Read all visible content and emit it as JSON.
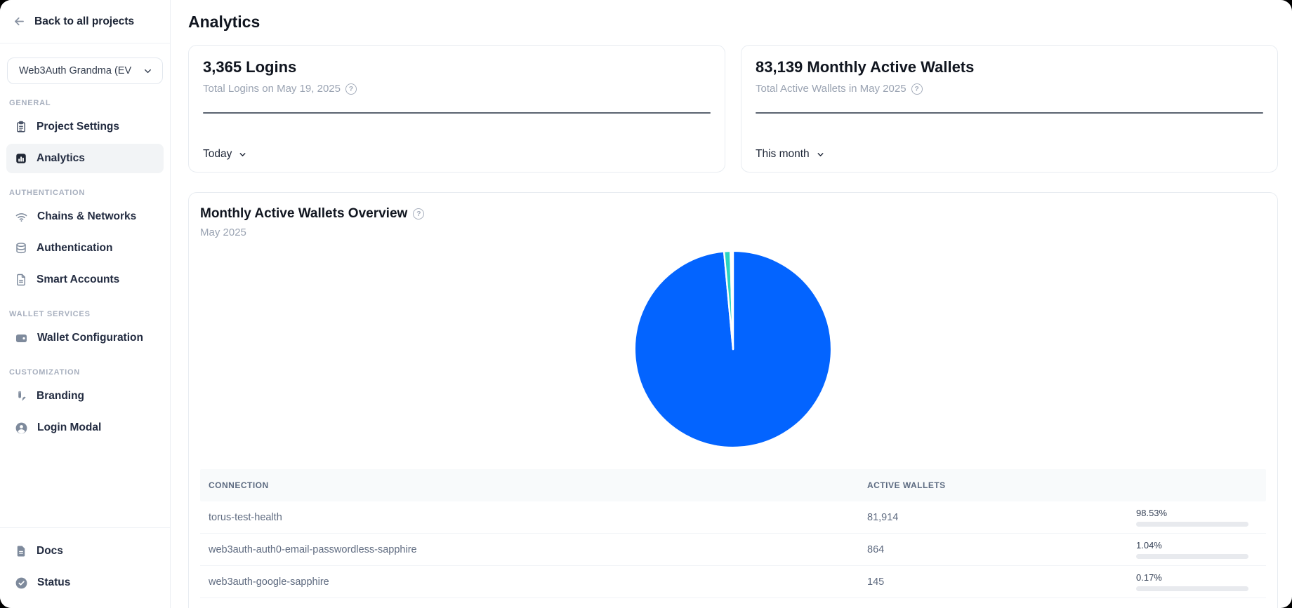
{
  "app": {
    "accent_blue": "#0364FF",
    "teal": "#2AD5C1"
  },
  "sidebar": {
    "back_label": "Back to all projects",
    "project_selector": {
      "value": "Web3Auth Grandma (EV"
    },
    "sections": [
      {
        "label": "GENERAL",
        "items": [
          {
            "label": "Project Settings",
            "icon": "clipboard-icon",
            "active": false
          },
          {
            "label": "Analytics",
            "icon": "bar-chart-icon",
            "active": true
          }
        ]
      },
      {
        "label": "AUTHENTICATION",
        "items": [
          {
            "label": "Chains & Networks",
            "icon": "wifi-icon",
            "active": false
          },
          {
            "label": "Authentication",
            "icon": "database-icon",
            "active": false
          },
          {
            "label": "Smart Accounts",
            "icon": "file-icon",
            "active": false
          }
        ]
      },
      {
        "label": "WALLET SERVICES",
        "items": [
          {
            "label": "Wallet Configuration",
            "icon": "wallet-icon",
            "active": false
          }
        ]
      },
      {
        "label": "CUSTOMIZATION",
        "items": [
          {
            "label": "Branding",
            "icon": "brush-icon",
            "active": false
          },
          {
            "label": "Login Modal",
            "icon": "user-circle-icon",
            "active": false
          }
        ]
      }
    ],
    "footer_items": [
      {
        "label": "Docs",
        "icon": "docs-icon"
      },
      {
        "label": "Status",
        "icon": "status-check-icon"
      }
    ]
  },
  "page": {
    "title": "Analytics"
  },
  "stat_cards": [
    {
      "value_title": "3,365 Logins",
      "subtitle": "Total Logins on May 19, 2025",
      "range_label": "Today"
    },
    {
      "value_title": "83,139 Monthly Active Wallets",
      "subtitle": "Total Active Wallets in May 2025",
      "range_label": "This month"
    }
  ],
  "overview_card": {
    "title": "Monthly Active Wallets Overview",
    "subtitle": "May 2025",
    "table": {
      "columns": [
        "CONNECTION",
        "ACTIVE WALLETS"
      ],
      "rows": [
        {
          "connection": "torus-test-health",
          "active_wallets": "81,914",
          "percent_label": "98.53%",
          "percent_value": 98.53,
          "bar_color": "#0364FF"
        },
        {
          "connection": "web3auth-auth0-email-passwordless-sapphire",
          "active_wallets": "864",
          "percent_label": "1.04%",
          "percent_value": 1.04,
          "bar_color": "#2AD5C1"
        },
        {
          "connection": "web3auth-google-sapphire",
          "active_wallets": "145",
          "percent_label": "0.17%",
          "percent_value": 0.17,
          "bar_color": "#A9B2C2"
        }
      ]
    }
  },
  "chart_data": {
    "type": "pie",
    "title": "Monthly Active Wallets Overview",
    "subtitle": "May 2025",
    "labels": [
      "torus-test-health",
      "web3auth-auth0-email-passwordless-sapphire",
      "web3auth-google-sapphire"
    ],
    "values": [
      81914,
      864,
      145
    ],
    "percentages": [
      98.53,
      1.04,
      0.17
    ],
    "colors": [
      "#0364FF",
      "#2AD5C1",
      "#E8EAEE"
    ],
    "total_active_wallets": 83139,
    "legend_position": "none",
    "start_angle_deg": 0,
    "direction": "clockwise"
  }
}
